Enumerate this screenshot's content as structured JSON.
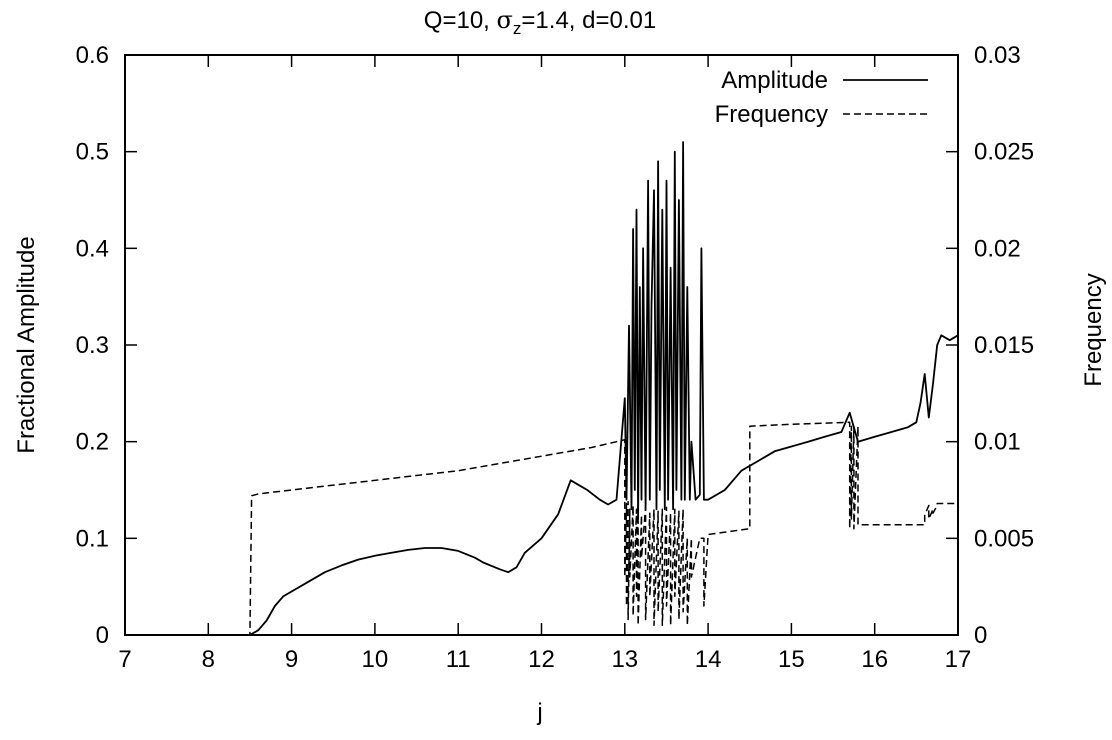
{
  "chart_data": {
    "type": "line",
    "title": {
      "prefix": "Q=10, ",
      "sigma": "σ",
      "sigma_sub": "z",
      "suffix": "=1.4, d=0.01"
    },
    "xlabel": "j",
    "ylabel": "Fractional Amplitude",
    "y2label": "Frequency",
    "xlim": [
      7,
      17
    ],
    "ylim": [
      0,
      0.6
    ],
    "y2lim": [
      0,
      0.03
    ],
    "xticks": [
      "7",
      "8",
      "9",
      "10",
      "11",
      "12",
      "13",
      "14",
      "15",
      "16",
      "17"
    ],
    "yticks": [
      "0",
      "0.1",
      "0.2",
      "0.3",
      "0.4",
      "0.5",
      "0.6"
    ],
    "y2ticks": [
      "0",
      "0.005",
      "0.01",
      "0.015",
      "0.02",
      "0.025",
      "0.03"
    ],
    "grid": false,
    "legend_position": "top-right",
    "series": [
      {
        "name": "Amplitude",
        "axis": "left",
        "style": "solid",
        "color": "#000000",
        "x": [
          7.0,
          8.5,
          8.6,
          8.7,
          8.8,
          8.9,
          9.0,
          9.2,
          9.4,
          9.6,
          9.8,
          10.0,
          10.2,
          10.4,
          10.6,
          10.8,
          11.0,
          11.2,
          11.3,
          11.5,
          11.6,
          11.7,
          11.8,
          12.0,
          12.2,
          12.35,
          12.45,
          12.55,
          12.7,
          12.8,
          12.9,
          13.0,
          13.02,
          13.05,
          13.08,
          13.1,
          13.12,
          13.14,
          13.16,
          13.18,
          13.2,
          13.22,
          13.25,
          13.28,
          13.3,
          13.32,
          13.35,
          13.38,
          13.4,
          13.42,
          13.45,
          13.48,
          13.5,
          13.52,
          13.55,
          13.58,
          13.6,
          13.62,
          13.65,
          13.68,
          13.7,
          13.72,
          13.75,
          13.78,
          13.8,
          13.85,
          13.9,
          13.92,
          13.95,
          14.0,
          14.2,
          14.4,
          14.6,
          14.8,
          15.0,
          15.2,
          15.4,
          15.6,
          15.7,
          15.8,
          16.0,
          16.2,
          16.4,
          16.5,
          16.55,
          16.6,
          16.65,
          16.7,
          16.75,
          16.8,
          16.9,
          17.0
        ],
        "y": [
          0.0,
          0.0,
          0.005,
          0.015,
          0.03,
          0.04,
          0.045,
          0.055,
          0.065,
          0.072,
          0.078,
          0.082,
          0.085,
          0.088,
          0.09,
          0.09,
          0.087,
          0.08,
          0.075,
          0.068,
          0.065,
          0.07,
          0.085,
          0.1,
          0.125,
          0.16,
          0.155,
          0.15,
          0.14,
          0.135,
          0.14,
          0.245,
          0.14,
          0.32,
          0.13,
          0.42,
          0.15,
          0.44,
          0.12,
          0.36,
          0.14,
          0.4,
          0.13,
          0.47,
          0.14,
          0.34,
          0.46,
          0.13,
          0.49,
          0.15,
          0.44,
          0.13,
          0.47,
          0.14,
          0.38,
          0.13,
          0.5,
          0.15,
          0.45,
          0.14,
          0.51,
          0.14,
          0.36,
          0.14,
          0.2,
          0.14,
          0.145,
          0.4,
          0.14,
          0.14,
          0.15,
          0.17,
          0.18,
          0.19,
          0.195,
          0.2,
          0.205,
          0.21,
          0.23,
          0.2,
          0.205,
          0.21,
          0.215,
          0.22,
          0.24,
          0.27,
          0.225,
          0.26,
          0.3,
          0.31,
          0.305,
          0.31
        ]
      },
      {
        "name": "Frequency",
        "axis": "right",
        "style": "dashed",
        "color": "#000000",
        "x": [
          7.0,
          8.5,
          8.52,
          8.6,
          9.0,
          9.4,
          9.8,
          10.2,
          10.6,
          11.0,
          11.4,
          11.8,
          12.2,
          12.6,
          12.9,
          13.0,
          13.0,
          13.02,
          13.02,
          13.04,
          13.04,
          13.06,
          13.06,
          13.1,
          13.1,
          13.14,
          13.14,
          13.16,
          13.16,
          13.2,
          13.2,
          13.25,
          13.25,
          13.3,
          13.3,
          13.35,
          13.35,
          13.4,
          13.4,
          13.45,
          13.45,
          13.5,
          13.5,
          13.55,
          13.55,
          13.6,
          13.6,
          13.65,
          13.65,
          13.7,
          13.7,
          13.75,
          13.75,
          13.8,
          13.8,
          13.9,
          13.9,
          13.95,
          13.95,
          14.0,
          14.5,
          14.5,
          15.0,
          15.7,
          15.7,
          15.72,
          15.72,
          15.75,
          15.75,
          15.8,
          15.8,
          16.6,
          16.6,
          16.65,
          16.65,
          16.7,
          16.7,
          16.75,
          16.75,
          17.0
        ],
        "y": [
          0.0,
          0.0,
          0.0072,
          0.0073,
          0.0075,
          0.0077,
          0.0079,
          0.0081,
          0.0083,
          0.0085,
          0.0088,
          0.0091,
          0.0094,
          0.0097,
          0.01,
          0.0101,
          0.003,
          0.0068,
          0.0015,
          0.0069,
          0.0008,
          0.0065,
          0.003,
          0.0067,
          0.001,
          0.0065,
          0.002,
          0.0068,
          0.0005,
          0.0062,
          0.004,
          0.0066,
          0.0008,
          0.0063,
          0.002,
          0.0065,
          0.0005,
          0.0064,
          0.0012,
          0.0065,
          0.0005,
          0.0066,
          0.0015,
          0.0063,
          0.0005,
          0.0065,
          0.002,
          0.0064,
          0.0008,
          0.0065,
          0.0012,
          0.005,
          0.0005,
          0.005,
          0.003,
          0.005,
          0.005,
          0.005,
          0.0015,
          0.0052,
          0.0055,
          0.0108,
          0.0109,
          0.011,
          0.0055,
          0.0108,
          0.006,
          0.0108,
          0.0055,
          0.0108,
          0.0057,
          0.0057,
          0.0062,
          0.0067,
          0.006,
          0.0065,
          0.0063,
          0.0067,
          0.0068,
          0.0068
        ]
      }
    ]
  }
}
